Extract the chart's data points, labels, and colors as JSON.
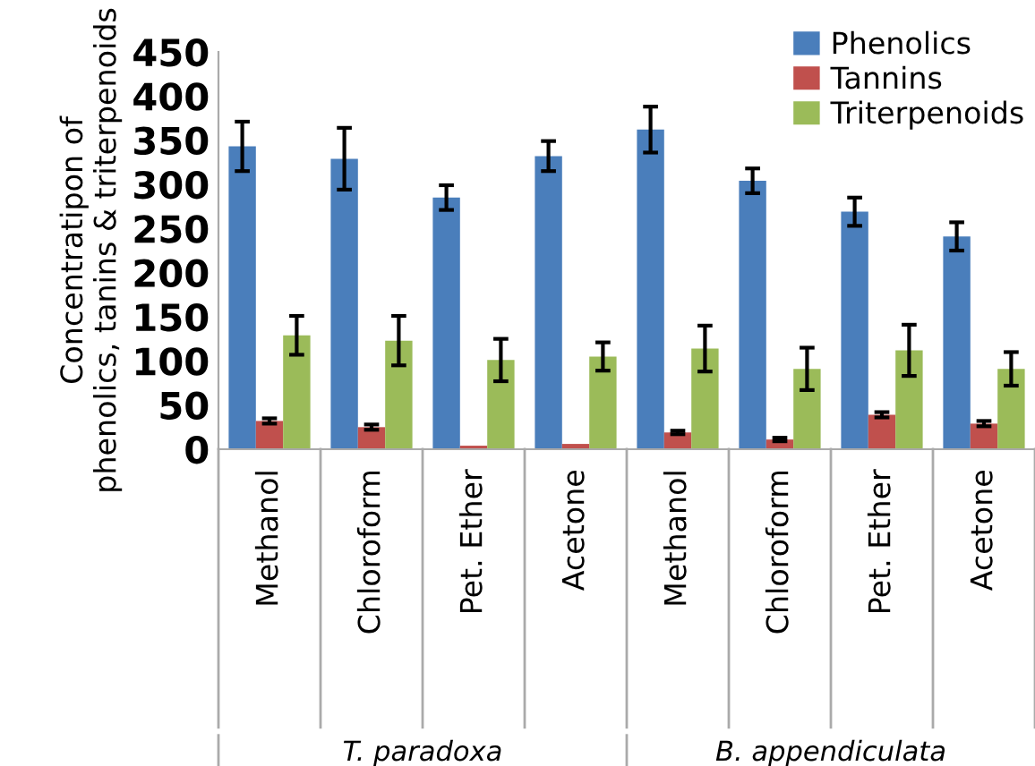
{
  "chart_data": {
    "type": "bar",
    "ylabel": "Concentratipon of\nphenolics, tanins & triterpenoids",
    "categories": [
      "Methanol",
      "Chloroform",
      "Pet. Ether",
      "Acetone",
      "Methanol",
      "Chloroform",
      "Pet. Ether",
      "Acetone"
    ],
    "series": [
      {
        "name": "Phenolics",
        "color": "#4a7ebb",
        "values": [
          343,
          329,
          285,
          332,
          362,
          304,
          269,
          241
        ],
        "errors": [
          28,
          35,
          14,
          17,
          26,
          14,
          16,
          16
        ]
      },
      {
        "name": "Tannins",
        "color": "#c0504d",
        "values": [
          32,
          25,
          4,
          6,
          19,
          11,
          39,
          29
        ],
        "errors": [
          3,
          3,
          null,
          null,
          2,
          2,
          3,
          3
        ]
      },
      {
        "name": "Triterpenoids",
        "color": "#9bbb59",
        "values": [
          129,
          123,
          101,
          105,
          114,
          91,
          112,
          91
        ],
        "errors": [
          22,
          28,
          24,
          16,
          26,
          24,
          29,
          19
        ]
      }
    ],
    "ylim": [
      0,
      450
    ],
    "yticks": [
      0,
      50,
      100,
      150,
      200,
      250,
      300,
      350,
      400,
      450
    ],
    "legend": "top right",
    "annotations": [
      "T. paradoxa",
      "B. appendiculata"
    ]
  }
}
